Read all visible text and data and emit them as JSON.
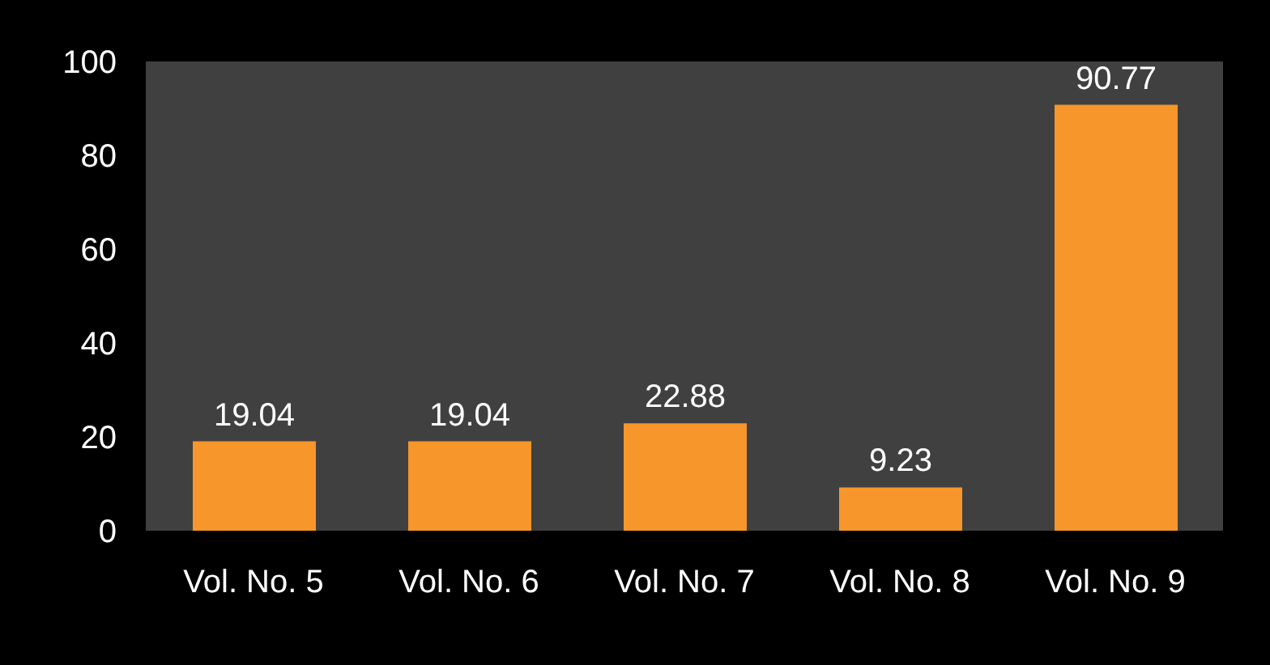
{
  "chart_data": {
    "type": "bar",
    "categories": [
      "Vol. No. 5",
      "Vol. No. 6",
      "Vol. No. 7",
      "Vol. No. 8",
      "Vol. No. 9"
    ],
    "values": [
      19.04,
      19.04,
      22.88,
      9.23,
      90.77
    ],
    "color": "#f7962a",
    "ylim": [
      0,
      100
    ],
    "yticks": [
      0,
      20,
      40,
      60,
      80,
      100
    ],
    "data_labels": true
  }
}
